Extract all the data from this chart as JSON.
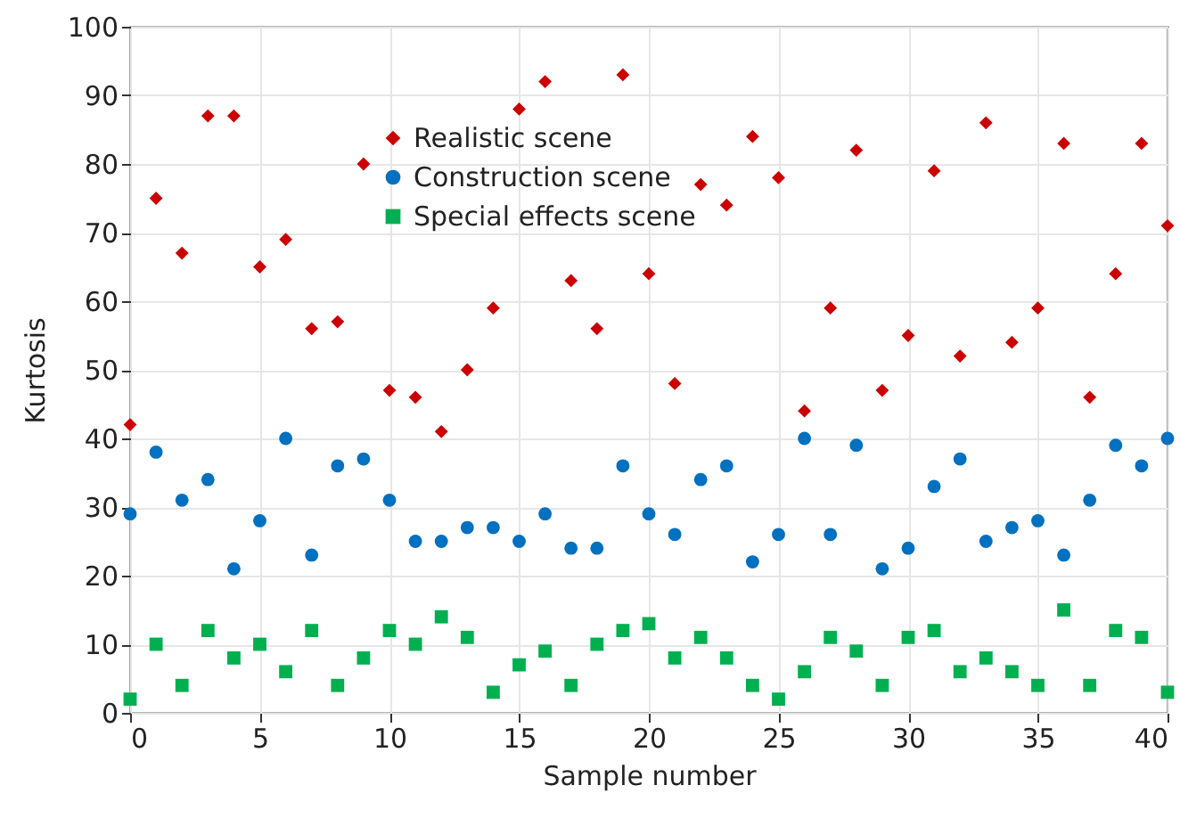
{
  "chart_data": {
    "type": "scatter",
    "xlabel": "Sample number",
    "ylabel": "Kurtosis",
    "x": [
      0,
      1,
      2,
      3,
      4,
      5,
      6,
      7,
      8,
      9,
      10,
      11,
      12,
      13,
      14,
      15,
      16,
      17,
      18,
      19,
      20,
      21,
      22,
      23,
      24,
      25,
      26,
      27,
      28,
      29,
      30,
      31,
      32,
      33,
      34,
      35,
      36,
      37,
      38,
      39,
      40
    ],
    "series": [
      {
        "name": "Realistic scene",
        "color": "#cc0000",
        "marker": "diamond",
        "values": [
          42,
          75,
          67,
          87,
          87,
          65,
          69,
          56,
          57,
          80,
          47,
          46,
          41,
          50,
          59,
          88,
          92,
          63,
          56,
          93,
          64,
          48,
          77,
          74,
          84,
          78,
          44,
          59,
          82,
          47,
          55,
          79,
          52,
          86,
          54,
          59,
          83,
          46,
          64,
          83,
          71
        ]
      },
      {
        "name": "Construction scene",
        "color": "#0070c0",
        "marker": "circle",
        "values": [
          29,
          38,
          31,
          34,
          21,
          28,
          40,
          23,
          36,
          37,
          31,
          25,
          25,
          27,
          27,
          25,
          29,
          24,
          24,
          36,
          29,
          26,
          34,
          36,
          22,
          26,
          40,
          26,
          39,
          21,
          24,
          33,
          37,
          25,
          27,
          28,
          23,
          31,
          39,
          36,
          40
        ]
      },
      {
        "name": "Special effects scene",
        "color": "#00b050",
        "marker": "square",
        "values": [
          2,
          10,
          4,
          12,
          8,
          10,
          6,
          12,
          4,
          8,
          12,
          10,
          14,
          11,
          3,
          7,
          9,
          4,
          10,
          12,
          13,
          8,
          11,
          8,
          4,
          2,
          6,
          11,
          9,
          4,
          11,
          12,
          6,
          8,
          6,
          4,
          15,
          4,
          12,
          11,
          3
        ]
      }
    ],
    "xlim": [
      0,
      40
    ],
    "xticks": [
      0,
      5,
      10,
      15,
      20,
      25,
      30,
      35,
      40
    ],
    "ylim": [
      0,
      100
    ],
    "yticks": [
      0,
      10,
      20,
      30,
      40,
      50,
      60,
      70,
      80,
      90,
      100
    ],
    "grid": true,
    "legend": "top"
  }
}
